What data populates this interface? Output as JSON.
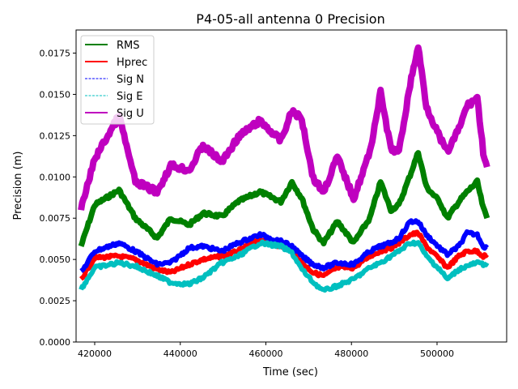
{
  "chart_data": {
    "type": "line",
    "title": "P4-05-all antenna 0 Precision",
    "xlabel": "Time (sec)",
    "ylabel": "Precision (m)",
    "xlim": [
      415650,
      516270
    ],
    "ylim": [
      0,
      0.0189
    ],
    "xticks": [
      420000,
      440000,
      460000,
      480000,
      500000
    ],
    "xtick_labels": [
      "420000",
      "440000",
      "460000",
      "480000",
      "500000"
    ],
    "yticks": [
      0,
      0.0025,
      0.005,
      0.0075,
      0.01,
      0.0125,
      0.015,
      0.0175
    ],
    "ytick_labels": [
      "0.0000",
      "0.0025",
      "0.0050",
      "0.0075",
      "0.0100",
      "0.0125",
      "0.0150",
      "0.0175"
    ],
    "grid": false,
    "legend_position": "top-left",
    "x": [
      416800,
      420000,
      425700,
      429500,
      434600,
      437800,
      442100,
      445300,
      449700,
      453500,
      458600,
      463500,
      466100,
      468400,
      471100,
      473500,
      476700,
      480500,
      484300,
      486800,
      489200,
      491100,
      493700,
      495600,
      497500,
      500600,
      502400,
      505100,
      507000,
      509400,
      510800,
      511700
    ],
    "series": [
      {
        "name": "RMS",
        "color": "#008000",
        "style": "solid",
        "values": [
          0.0058,
          0.0083,
          0.0092,
          0.0075,
          0.0063,
          0.0075,
          0.0071,
          0.0078,
          0.0076,
          0.0085,
          0.0091,
          0.0085,
          0.0097,
          0.0087,
          0.0068,
          0.006,
          0.0073,
          0.006,
          0.0075,
          0.0097,
          0.008,
          0.0083,
          0.0101,
          0.0115,
          0.0094,
          0.0085,
          0.0075,
          0.0085,
          0.0091,
          0.0097,
          0.0081,
          0.0075
        ]
      },
      {
        "name": "Hprec",
        "color": "#ff0000",
        "style": "solid",
        "values": [
          0.0038,
          0.0051,
          0.0052,
          0.005,
          0.0044,
          0.0042,
          0.0047,
          0.005,
          0.0052,
          0.0055,
          0.0062,
          0.0058,
          0.0056,
          0.0048,
          0.0042,
          0.004,
          0.0045,
          0.0045,
          0.0052,
          0.0055,
          0.0057,
          0.006,
          0.0065,
          0.0066,
          0.0058,
          0.005,
          0.0045,
          0.0052,
          0.0055,
          0.0055,
          0.0052,
          0.0053
        ]
      },
      {
        "name": "Sig N",
        "color": "#0000ff",
        "style": "dashed",
        "values": [
          0.0042,
          0.0055,
          0.006,
          0.0055,
          0.0047,
          0.0048,
          0.0057,
          0.0058,
          0.0055,
          0.006,
          0.0065,
          0.0061,
          0.0058,
          0.0052,
          0.0047,
          0.0045,
          0.0048,
          0.0047,
          0.0055,
          0.0058,
          0.006,
          0.0063,
          0.0073,
          0.0073,
          0.0065,
          0.0057,
          0.0053,
          0.0058,
          0.0066,
          0.0065,
          0.0058,
          0.0057
        ]
      },
      {
        "name": "Sig E",
        "color": "#00bfbf",
        "style": "dashed",
        "values": [
          0.0032,
          0.0045,
          0.0048,
          0.0046,
          0.004,
          0.0036,
          0.0035,
          0.0039,
          0.0048,
          0.0052,
          0.006,
          0.0058,
          0.0054,
          0.0044,
          0.0036,
          0.0031,
          0.0034,
          0.0038,
          0.0045,
          0.0048,
          0.0052,
          0.0055,
          0.006,
          0.006,
          0.0052,
          0.0044,
          0.0038,
          0.0044,
          0.0046,
          0.0048,
          0.0047,
          0.0048
        ]
      },
      {
        "name": "Sig U",
        "color": "#bf00bf",
        "style": "solid",
        "values": [
          0.008,
          0.0111,
          0.0137,
          0.0097,
          0.0091,
          0.0107,
          0.0104,
          0.0119,
          0.0109,
          0.0124,
          0.0134,
          0.0122,
          0.014,
          0.0135,
          0.0099,
          0.0091,
          0.0112,
          0.0087,
          0.0115,
          0.0151,
          0.0117,
          0.0115,
          0.0156,
          0.0179,
          0.0143,
          0.0124,
          0.0115,
          0.0129,
          0.0143,
          0.0148,
          0.0115,
          0.0106
        ]
      }
    ]
  }
}
